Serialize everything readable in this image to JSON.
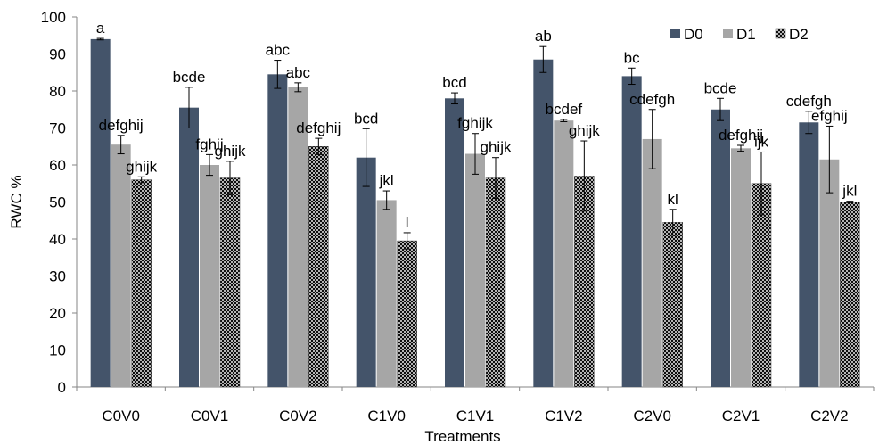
{
  "chart_data": {
    "type": "bar",
    "xlabel": "Treatments",
    "ylabel": "RWC %",
    "ylim": [
      0,
      100
    ],
    "yticks": [
      0,
      10,
      20,
      30,
      40,
      50,
      60,
      70,
      80,
      90,
      100
    ],
    "grid": false,
    "legend_position": "top-right",
    "categories": [
      "C0V0",
      "C0V1",
      "C0V2",
      "C1V0",
      "C1V1",
      "C1V2",
      "C2V0",
      "C2V1",
      "C2V2"
    ],
    "series": [
      {
        "name": "D0",
        "color": "#44546A",
        "pattern": "solid",
        "values": [
          94,
          75.5,
          84.5,
          62,
          78,
          88.5,
          84,
          75,
          71.5
        ],
        "errors": [
          0.2,
          5.5,
          3.8,
          7.8,
          1.5,
          3.5,
          2.2,
          3,
          3
        ],
        "labels": [
          "a",
          "bcde",
          "abc",
          "bcd",
          "bcd",
          "ab",
          "bc",
          "bcde",
          "cdefgh"
        ]
      },
      {
        "name": "D1",
        "color": "#A6A6A6",
        "pattern": "solid",
        "values": [
          65.5,
          60,
          81,
          50.5,
          63,
          72,
          67,
          64.5,
          61.5
        ],
        "errors": [
          2.5,
          2.8,
          1.2,
          2.5,
          5.5,
          0.3,
          8,
          0.8,
          9
        ],
        "labels": [
          "defghij",
          "fghij",
          "abc",
          "jkl",
          "fghijk",
          "bcdef",
          "cdefgh",
          "defghij",
          "efghij"
        ]
      },
      {
        "name": "D2",
        "color": "#000000",
        "pattern": "crosshatch",
        "values": [
          56,
          56.5,
          65,
          39.5,
          56.5,
          57,
          44.5,
          55,
          50
        ],
        "errors": [
          0.8,
          4.5,
          2.2,
          2.2,
          5.5,
          9.5,
          3.5,
          8.5,
          0.2
        ],
        "labels": [
          "ghijk",
          "ghijk",
          "defghij",
          "l",
          "ghijk",
          "ghijk",
          "kl",
          "ijk",
          "jkl"
        ]
      }
    ]
  }
}
